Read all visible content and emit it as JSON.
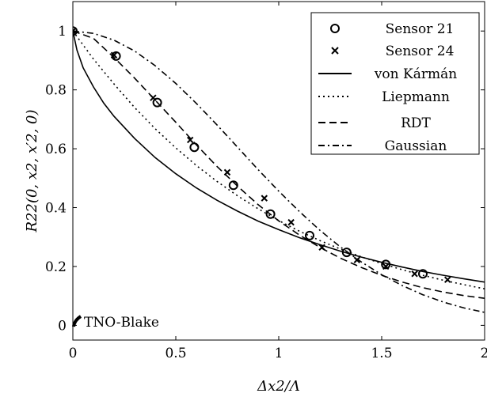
{
  "chart_data": {
    "type": "line",
    "xlabel": "Δx2/Λ",
    "ylabel": "R22(0, x2, x′2, 0)",
    "xlim": [
      0,
      2
    ],
    "ylim": [
      -0.05,
      1.1
    ],
    "xticks": [
      "0",
      "0.5",
      "1",
      "1.5",
      "2"
    ],
    "yticks": [
      "0",
      "0.2",
      "0.4",
      "0.6",
      "0.8",
      "1"
    ],
    "xtick_values": [
      0,
      0.5,
      1,
      1.5,
      2
    ],
    "ytick_values": [
      0,
      0.2,
      0.4,
      0.6,
      0.8,
      1
    ],
    "grid": false,
    "legend_position": "top-right",
    "annotation": "TNO-Blake",
    "series": [
      {
        "name": "Sensor 21",
        "kind": "marker-circle",
        "x": [
          0,
          0.21,
          0.41,
          0.59,
          0.78,
          0.96,
          1.15,
          1.33,
          1.52,
          1.7
        ],
        "y": [
          1.0,
          0.915,
          0.757,
          0.605,
          0.476,
          0.378,
          0.305,
          0.248,
          0.207,
          0.175
        ]
      },
      {
        "name": "Sensor 24",
        "kind": "marker-x",
        "x": [
          0,
          0.2,
          0.39,
          0.57,
          0.75,
          0.93,
          1.06,
          1.21,
          1.38,
          1.52,
          1.66,
          1.82
        ],
        "y": [
          1.0,
          0.918,
          0.773,
          0.63,
          0.52,
          0.432,
          0.35,
          0.265,
          0.222,
          0.2,
          0.175,
          0.155
        ]
      },
      {
        "name": "von Kármán",
        "kind": "line-solid",
        "x": [
          0,
          0.02,
          0.05,
          0.1,
          0.15,
          0.2,
          0.3,
          0.4,
          0.5,
          0.6,
          0.7,
          0.8,
          0.9,
          1.0,
          1.1,
          1.2,
          1.3,
          1.4,
          1.5,
          1.6,
          1.7,
          1.8,
          1.9,
          2.0
        ],
        "y": [
          1.0,
          0.935,
          0.875,
          0.81,
          0.755,
          0.71,
          0.635,
          0.57,
          0.515,
          0.467,
          0.425,
          0.388,
          0.354,
          0.325,
          0.298,
          0.274,
          0.252,
          0.232,
          0.214,
          0.198,
          0.183,
          0.17,
          0.158,
          0.147
        ]
      },
      {
        "name": "Liepmann",
        "kind": "line-dotted",
        "x": [
          0,
          0.1,
          0.2,
          0.3,
          0.4,
          0.5,
          0.6,
          0.7,
          0.8,
          0.9,
          1.0,
          1.1,
          1.2,
          1.3,
          1.4,
          1.5,
          1.6,
          1.7,
          1.8,
          1.9,
          2.0
        ],
        "y": [
          1.0,
          0.905,
          0.82,
          0.74,
          0.668,
          0.603,
          0.543,
          0.489,
          0.44,
          0.396,
          0.356,
          0.32,
          0.288,
          0.259,
          0.233,
          0.21,
          0.189,
          0.17,
          0.153,
          0.138,
          0.124
        ]
      },
      {
        "name": "RDT",
        "kind": "line-dashed",
        "x": [
          0,
          0.1,
          0.2,
          0.3,
          0.4,
          0.5,
          0.6,
          0.7,
          0.8,
          0.9,
          1.0,
          1.1,
          1.2,
          1.3,
          1.4,
          1.5,
          1.6,
          1.7,
          1.8,
          1.9,
          2.0
        ],
        "y": [
          1.0,
          0.975,
          0.91,
          0.84,
          0.765,
          0.69,
          0.613,
          0.54,
          0.473,
          0.41,
          0.355,
          0.307,
          0.265,
          0.228,
          0.197,
          0.17,
          0.147,
          0.128,
          0.113,
          0.101,
          0.092
        ]
      },
      {
        "name": "Gaussian",
        "kind": "line-dashdot",
        "x": [
          0,
          0.1,
          0.2,
          0.3,
          0.4,
          0.5,
          0.6,
          0.7,
          0.8,
          0.9,
          1.0,
          1.1,
          1.2,
          1.3,
          1.4,
          1.5,
          1.6,
          1.7,
          1.8,
          1.9,
          2.0
        ],
        "y": [
          1.0,
          0.992,
          0.969,
          0.932,
          0.882,
          0.822,
          0.754,
          0.681,
          0.605,
          0.529,
          0.456,
          0.387,
          0.323,
          0.266,
          0.216,
          0.172,
          0.135,
          0.104,
          0.079,
          0.059,
          0.044
        ]
      }
    ]
  }
}
